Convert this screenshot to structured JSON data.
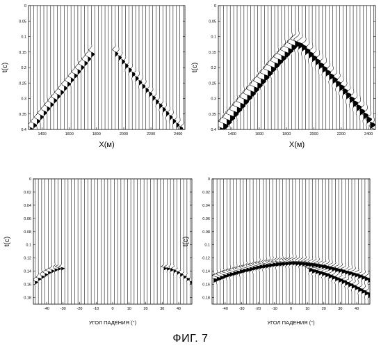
{
  "caption": "ФИГ. 7",
  "chart_data": [
    {
      "type": "line",
      "ylabel": "t(c)",
      "xlabel": "X(м)",
      "xlim": [
        1300,
        2450
      ],
      "ylim": [
        0,
        0.4
      ],
      "y_reversed": true,
      "yticks": [
        0,
        0.05,
        0.1,
        0.15,
        0.2,
        0.25,
        0.3,
        0.35,
        0.4
      ],
      "ytick_labels": [
        "0",
        "0.05",
        "0.1",
        "0.15",
        "0.2",
        "0.25",
        "0.3",
        "0.35",
        "0.4"
      ],
      "xticks": [
        1400,
        1600,
        1800,
        2000,
        2200,
        2400
      ],
      "trace_spacing": 25,
      "series": [
        {
          "x": [
            1300,
            1440,
            1600,
            1730,
            1780
          ],
          "y": [
            0.4,
            0.325,
            0.24,
            0.17,
            0.14
          ]
        },
        {
          "x": [
            1920,
            1980,
            2100,
            2250,
            2400,
            2440
          ],
          "y": [
            0.14,
            0.17,
            0.235,
            0.31,
            0.385,
            0.4
          ]
        }
      ],
      "event_amplitude": "weak"
    },
    {
      "type": "line",
      "ylabel": "t(c)",
      "xlabel": "X(м)",
      "xlim": [
        1300,
        2450
      ],
      "ylim": [
        0,
        0.4
      ],
      "y_reversed": true,
      "yticks": [
        0,
        0.05,
        0.1,
        0.15,
        0.2,
        0.25,
        0.3,
        0.35,
        0.4
      ],
      "ytick_labels": [
        "0",
        "0.05",
        "0.1",
        "0.15",
        "0.2",
        "0.25",
        "0.3",
        "0.35",
        "0.4"
      ],
      "xticks": [
        1400,
        1600,
        1800,
        2000,
        2200,
        2400
      ],
      "trace_spacing": 25,
      "series": [
        {
          "x": [
            1300,
            1500,
            1700,
            1860
          ],
          "y": [
            0.4,
            0.295,
            0.19,
            0.115
          ]
        },
        {
          "x": [
            1860,
            1900,
            2000,
            2200,
            2400,
            2440
          ],
          "y": [
            0.115,
            0.12,
            0.165,
            0.26,
            0.365,
            0.4
          ]
        }
      ],
      "event_amplitude": "strong"
    },
    {
      "type": "line",
      "ylabel": "t(c)",
      "xlabel": "УГОЛ ПАДЕНИЯ (°)",
      "xlim": [
        -48,
        48
      ],
      "ylim": [
        0,
        0.19
      ],
      "y_reversed": true,
      "yticks": [
        0,
        0.02,
        0.04,
        0.06,
        0.08,
        0.1,
        0.12,
        0.14,
        0.16,
        0.18
      ],
      "ytick_labels": [
        "0",
        "0.02",
        "0.04",
        "0.06",
        "0.08",
        "0.1",
        "0.12",
        "0.14",
        "0.16",
        "0.18"
      ],
      "xticks": [
        -40,
        -30,
        -20,
        -10,
        0,
        10,
        20,
        30,
        40
      ],
      "trace_spacing": 2,
      "series": [
        {
          "x": [
            -48,
            -46,
            -42,
            -38,
            -34,
            -30
          ],
          "y": [
            0.158,
            0.152,
            0.145,
            0.139,
            0.135,
            0.134
          ]
        },
        {
          "x": [
            30,
            34,
            38,
            42,
            46,
            48
          ],
          "y": [
            0.134,
            0.135,
            0.139,
            0.145,
            0.152,
            0.158
          ]
        }
      ],
      "event_amplitude": "weak"
    },
    {
      "type": "line",
      "ylabel": "t(c)",
      "xlabel": "УГОЛ ПАДЕНИЯ (°)",
      "xlim": [
        -48,
        48
      ],
      "ylim": [
        0,
        0.19
      ],
      "y_reversed": true,
      "yticks": [
        0,
        0.02,
        0.04,
        0.06,
        0.08,
        0.1,
        0.12,
        0.14,
        0.16,
        0.18
      ],
      "ytick_labels": [
        "0",
        "0.02",
        "0.04",
        "0.06",
        "0.08",
        "0.1",
        "0.12",
        "0.14",
        "0.16",
        "0.18"
      ],
      "xticks": [
        -40,
        -30,
        -20,
        -10,
        0,
        10,
        20,
        30,
        40
      ],
      "trace_spacing": 2,
      "series": [
        {
          "x": [
            -48,
            -40,
            -30,
            -20,
            -10,
            0,
            10,
            20,
            30,
            40,
            48
          ],
          "y": [
            0.152,
            0.144,
            0.137,
            0.131,
            0.127,
            0.125,
            0.127,
            0.131,
            0.137,
            0.144,
            0.152
          ]
        },
        {
          "x": [
            10,
            20,
            30,
            40,
            48
          ],
          "y": [
            0.135,
            0.142,
            0.152,
            0.164,
            0.175
          ]
        }
      ],
      "event_amplitude": "strong"
    }
  ]
}
